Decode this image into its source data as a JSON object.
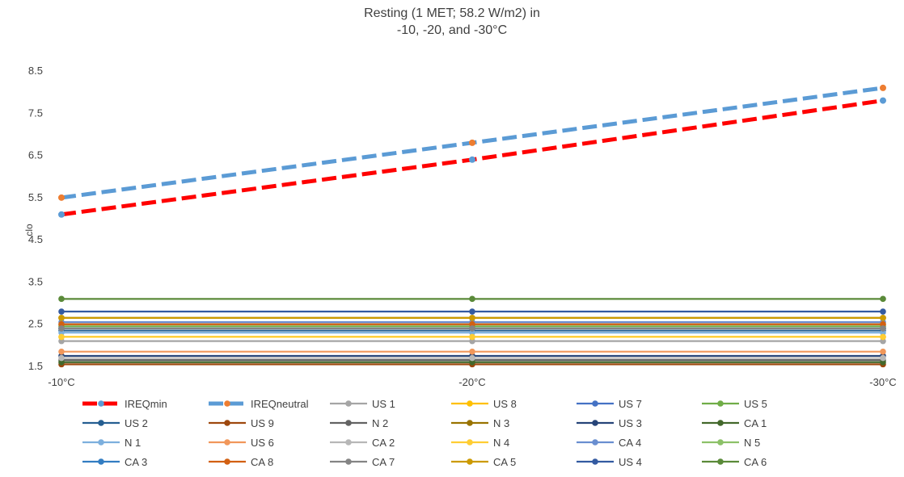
{
  "chart_data": {
    "type": "line",
    "title": "Resting (1 MET; 58.2 W/m2) in",
    "subtitle": "-10, -20, and -30°C",
    "xlabel": "",
    "ylabel": "clo",
    "categories": [
      "-10°C",
      "-20°C",
      "-30°C"
    ],
    "ylim": [
      1.5,
      8.5
    ],
    "yticks": [
      1.5,
      2.5,
      3.5,
      4.5,
      5.5,
      6.5,
      7.5,
      8.5
    ],
    "ytick_labels": [
      "1.5",
      "2.5",
      "3.5",
      "4.5",
      "5.5",
      "6.5",
      "7.5",
      "8.5"
    ],
    "grid": false,
    "legend_position": "bottom",
    "series": [
      {
        "name": "IREQmin",
        "values": [
          5.1,
          6.4,
          7.8
        ],
        "color": "#ff0000",
        "marker_color": "#5b9bd5",
        "dashed": true
      },
      {
        "name": "IREQneutral",
        "values": [
          5.5,
          6.8,
          8.1
        ],
        "color": "#5b9bd5",
        "marker_color": "#ed7d31",
        "dashed": true
      },
      {
        "name": "US 1",
        "values": [
          2.1,
          2.1,
          2.1
        ],
        "color": "#a5a5a5"
      },
      {
        "name": "US 8",
        "values": [
          2.2,
          2.2,
          2.2
        ],
        "color": "#ffc000"
      },
      {
        "name": "US 7",
        "values": [
          2.4,
          2.4,
          2.4
        ],
        "color": "#4472c4"
      },
      {
        "name": "US 5",
        "values": [
          2.45,
          2.45,
          2.45
        ],
        "color": "#70ad47"
      },
      {
        "name": "US 2",
        "values": [
          2.35,
          2.35,
          2.35
        ],
        "color": "#255e91"
      },
      {
        "name": "US 9",
        "values": [
          1.55,
          1.55,
          1.55
        ],
        "color": "#9e480e"
      },
      {
        "name": "N 2",
        "values": [
          1.65,
          1.65,
          1.65
        ],
        "color": "#636363"
      },
      {
        "name": "N 3",
        "values": [
          2.65,
          2.65,
          2.65
        ],
        "color": "#997300"
      },
      {
        "name": "US 3",
        "values": [
          1.75,
          1.75,
          1.75
        ],
        "color": "#264478"
      },
      {
        "name": "CA 1",
        "values": [
          1.6,
          1.6,
          1.6
        ],
        "color": "#43682b"
      },
      {
        "name": "N 1",
        "values": [
          2.3,
          2.3,
          2.3
        ],
        "color": "#7cafdd"
      },
      {
        "name": "US 6",
        "values": [
          1.85,
          1.85,
          1.85
        ],
        "color": "#f1975a"
      },
      {
        "name": "CA 2",
        "values": [
          1.7,
          1.7,
          1.7
        ],
        "color": "#b7b7b7"
      },
      {
        "name": "N 4",
        "values": [
          2.2,
          2.2,
          2.2
        ],
        "color": "#ffcd33"
      },
      {
        "name": "CA 4",
        "values": [
          2.55,
          2.55,
          2.55
        ],
        "color": "#698ed0"
      },
      {
        "name": "N 5",
        "values": [
          2.5,
          2.5,
          2.5
        ],
        "color": "#8cc168"
      },
      {
        "name": "CA 3",
        "values": [
          2.4,
          2.4,
          2.4
        ],
        "color": "#327dc2"
      },
      {
        "name": "CA 8",
        "values": [
          2.5,
          2.5,
          2.5
        ],
        "color": "#d26012"
      },
      {
        "name": "CA 7",
        "values": [
          2.4,
          2.4,
          2.4
        ],
        "color": "#848484"
      },
      {
        "name": "CA 5",
        "values": [
          2.65,
          2.65,
          2.65
        ],
        "color": "#cc9a00"
      },
      {
        "name": "US 4",
        "values": [
          2.8,
          2.8,
          2.8
        ],
        "color": "#335aa1"
      },
      {
        "name": "CA 6",
        "values": [
          3.1,
          3.1,
          3.1
        ],
        "color": "#5a8a39"
      }
    ]
  }
}
